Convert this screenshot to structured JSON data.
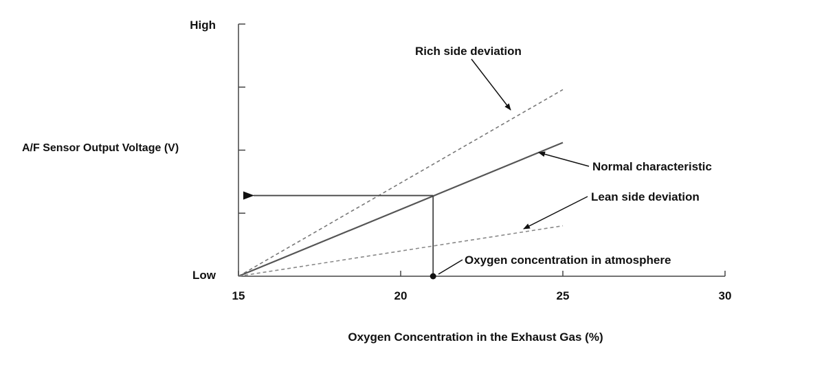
{
  "chart_data": {
    "type": "line",
    "x_axis": {
      "label": "Oxygen Concentration in the Exhaust Gas (%)",
      "ticks": [
        15,
        20,
        25,
        30
      ],
      "range": [
        15,
        30
      ]
    },
    "y_axis": {
      "label": "A/F Sensor Output Voltage (V)",
      "tick_labels": {
        "low": "Low",
        "high": "High"
      },
      "range": [
        0,
        1
      ],
      "minor_tick_count": 4
    },
    "series": [
      {
        "name": "Rich side deviation",
        "style": "dashed",
        "color": "#777777",
        "x": [
          15,
          25
        ],
        "y": [
          0,
          0.74
        ]
      },
      {
        "name": "Normal characteristic",
        "style": "solid",
        "color": "#555555",
        "x": [
          15,
          25
        ],
        "y": [
          0,
          0.53
        ]
      },
      {
        "name": "Lean side deviation",
        "style": "dashed",
        "color": "#888888",
        "x": [
          15,
          25
        ],
        "y": [
          0,
          0.2
        ]
      }
    ],
    "reference": {
      "name": "Oxygen concentration in atmosphere",
      "x": 21,
      "y": 0.32
    },
    "grid": false,
    "legend": "callouts"
  }
}
